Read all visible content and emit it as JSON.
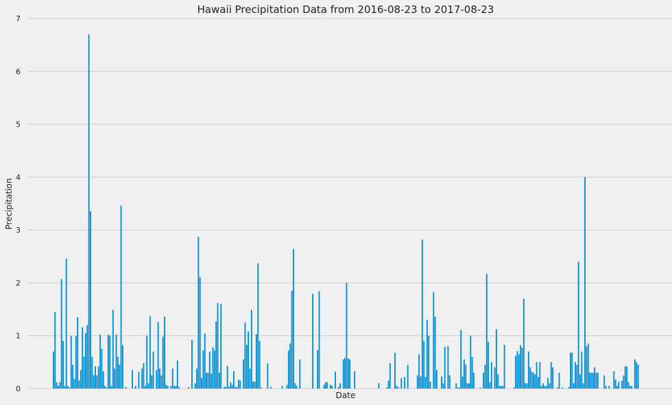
{
  "chart_data": {
    "type": "bar",
    "title": "Hawaii Precipitation Data from 2016-08-23 to 2017-08-23",
    "xlabel": "Date",
    "ylabel": "Precipitation",
    "ylim": [
      0,
      7
    ],
    "yticks": [
      0,
      1,
      2,
      3,
      4,
      5,
      6,
      7
    ],
    "grid": "horizontal",
    "legend": "none",
    "bar_color": "#008fd5",
    "background": "#f0f0f0",
    "grid_color": "#cbcbcb",
    "values": [
      0.7,
      1.45,
      0.12,
      0.05,
      0.12,
      2.07,
      0.9,
      0.05,
      2.46,
      0.05,
      0.02,
      1.0,
      0.45,
      0.18,
      1.0,
      1.35,
      0.15,
      0.35,
      1.16,
      0.6,
      1.05,
      1.2,
      6.7,
      3.35,
      0.6,
      0.25,
      0.42,
      0.25,
      0.42,
      1.02,
      0.75,
      0.33,
      0.05,
      0.02,
      1.02,
      1.0,
      0.05,
      1.49,
      0.38,
      1.02,
      0.6,
      0.45,
      3.46,
      0.82,
      0.0,
      0.03,
      0.0,
      0.0,
      0.0,
      0.35,
      0.0,
      0.05,
      0.0,
      0.32,
      0.0,
      0.38,
      0.48,
      0.05,
      1.0,
      0.1,
      1.37,
      0.25,
      0.7,
      0.0,
      0.35,
      1.26,
      0.38,
      0.25,
      0.98,
      1.36,
      0.07,
      0.05,
      0.0,
      0.05,
      0.38,
      0.05,
      0.05,
      0.53,
      0.03,
      0.0,
      0.0,
      0.0,
      0.0,
      0.0,
      0.03,
      0.0,
      0.92,
      0.0,
      0.1,
      0.38,
      2.87,
      2.11,
      0.2,
      0.72,
      1.04,
      0.3,
      0.3,
      0.7,
      0.28,
      0.78,
      0.72,
      1.27,
      1.62,
      0.3,
      1.6,
      0.0,
      0.03,
      0.03,
      0.43,
      0.03,
      0.12,
      0.07,
      0.33,
      0.03,
      0.03,
      0.17,
      0.15,
      0.0,
      0.55,
      1.25,
      0.83,
      1.08,
      0.38,
      1.49,
      0.13,
      0.13,
      1.03,
      2.37,
      0.9,
      0.02,
      0.0,
      0.0,
      0.0,
      0.48,
      0.0,
      0.03,
      0.0,
      0.0,
      0.0,
      0.0,
      0.0,
      0.0,
      0.05,
      0.0,
      0.0,
      0.07,
      0.72,
      0.85,
      1.85,
      2.64,
      0.1,
      0.05,
      0.0,
      0.55,
      0.0,
      0.0,
      0.0,
      0.0,
      0.0,
      0.0,
      0.0,
      1.79,
      0.0,
      0.0,
      0.73,
      1.84,
      0.0,
      0.0,
      0.07,
      0.12,
      0.12,
      0.0,
      0.07,
      0.05,
      0.0,
      0.32,
      0.0,
      0.03,
      0.1,
      0.0,
      0.55,
      0.58,
      2.0,
      0.57,
      0.55,
      0.0,
      0.0,
      0.33,
      0.0,
      0.0,
      0.0,
      0.0,
      0.0,
      0.0,
      0.0,
      0.0,
      0.0,
      0.0,
      0.0,
      0.0,
      0.0,
      0.0,
      0.1,
      0.0,
      0.0,
      0.0,
      0.0,
      0.02,
      0.15,
      0.48,
      0.0,
      0.0,
      0.68,
      0.05,
      0.03,
      0.0,
      0.2,
      0.0,
      0.22,
      0.0,
      0.45,
      0.0,
      0.0,
      0.0,
      0.0,
      0.0,
      0.25,
      0.65,
      0.23,
      2.82,
      0.9,
      0.22,
      1.3,
      1.0,
      0.13,
      0.0,
      1.83,
      1.36,
      0.35,
      0.0,
      0.0,
      0.23,
      0.1,
      0.79,
      0.0,
      0.8,
      0.25,
      0.0,
      0.0,
      0.0,
      0.1,
      0.02,
      0.02,
      1.11,
      0.23,
      0.55,
      0.45,
      0.1,
      0.1,
      1.0,
      0.6,
      0.3,
      0.0,
      0.0,
      0.0,
      0.02,
      0.0,
      0.3,
      0.45,
      2.17,
      0.88,
      0.12,
      0.5,
      0.0,
      0.4,
      1.12,
      0.27,
      0.05,
      0.05,
      0.05,
      0.83,
      0.0,
      0.0,
      0.0,
      0.0,
      0.0,
      0.02,
      0.62,
      0.71,
      0.65,
      0.82,
      0.77,
      1.7,
      0.1,
      0.1,
      0.7,
      0.4,
      0.32,
      0.3,
      0.27,
      0.5,
      0.22,
      0.5,
      0.05,
      0.1,
      0.05,
      0.05,
      0.2,
      0.1,
      0.5,
      0.4,
      0.0,
      0.0,
      0.02,
      0.3,
      0.0,
      0.02,
      0.0,
      0.0,
      0.0,
      0.03,
      0.68,
      0.68,
      0.1,
      0.5,
      0.45,
      2.4,
      0.27,
      0.7,
      0.1,
      4.0,
      0.8,
      0.85,
      0.3,
      0.3,
      0.3,
      0.4,
      0.3,
      0.3,
      0.0,
      0.0,
      0.0,
      0.25,
      0.05,
      0.0,
      0.05,
      0.0,
      0.0,
      0.33,
      0.17,
      0.05,
      0.13,
      0.0,
      0.15,
      0.25,
      0.42,
      0.42,
      0.12,
      0.05,
      0.05,
      0.0,
      0.55,
      0.5,
      0.45
    ]
  }
}
